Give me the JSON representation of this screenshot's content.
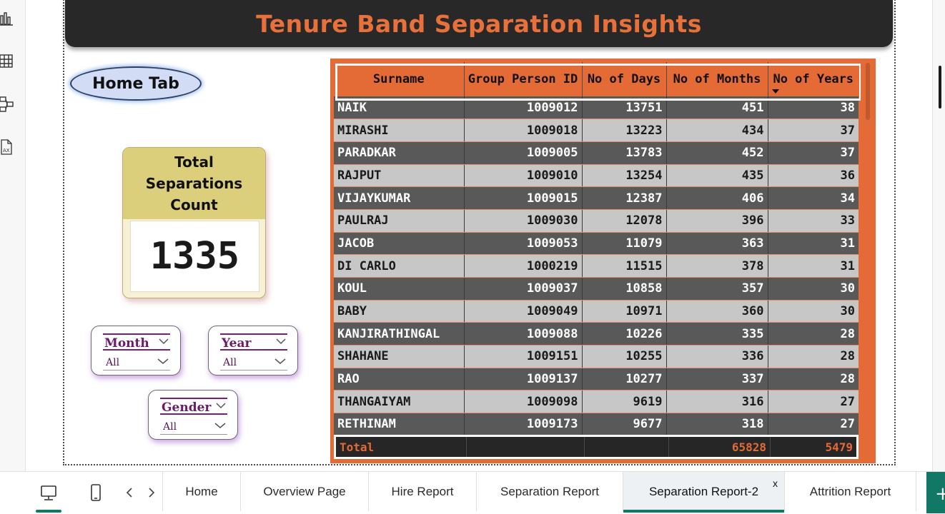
{
  "report": {
    "title": "Tenure Band Separation Insights",
    "home_button": "Home Tab"
  },
  "kpi": {
    "label": "Total Separations Count",
    "value": "1335"
  },
  "slicers": {
    "month": {
      "title": "Month",
      "value": "All"
    },
    "year": {
      "title": "Year",
      "value": "All"
    },
    "gender": {
      "title": "Gender",
      "value": "All"
    }
  },
  "table": {
    "columns": [
      "Surname",
      "Group Person ID",
      "No of Days",
      "No of Months",
      "No of Years"
    ],
    "sorted_column": "No of Years",
    "sort_direction": "descending",
    "rows": [
      [
        "NAIK",
        "1009012",
        "13751",
        "451",
        "38"
      ],
      [
        "MIRASHI",
        "1009018",
        "13223",
        "434",
        "37"
      ],
      [
        "PARADKAR",
        "1009005",
        "13783",
        "452",
        "37"
      ],
      [
        "RAJPUT",
        "1009010",
        "13254",
        "435",
        "36"
      ],
      [
        "VIJAYKUMAR",
        "1009015",
        "12387",
        "406",
        "34"
      ],
      [
        "PAULRAJ",
        "1009030",
        "12078",
        "396",
        "33"
      ],
      [
        "JACOB",
        "1009053",
        "11079",
        "363",
        "31"
      ],
      [
        "DI CARLO",
        "1000219",
        "11515",
        "378",
        "31"
      ],
      [
        "KOUL",
        "1009037",
        "10858",
        "357",
        "30"
      ],
      [
        "BABY",
        "1009049",
        "10971",
        "360",
        "30"
      ],
      [
        "KANJIRATHINGAL",
        "1009088",
        "10226",
        "335",
        "28"
      ],
      [
        "SHAHANE",
        "1009151",
        "10255",
        "336",
        "28"
      ],
      [
        "RAO",
        "1009137",
        "10277",
        "337",
        "28"
      ],
      [
        "THANGAIYAM",
        "1009098",
        "9619",
        "316",
        "27"
      ],
      [
        "RETHINAM",
        "1009173",
        "9677",
        "318",
        "27"
      ]
    ],
    "total": {
      "label": "Total",
      "no_of_months": "65828",
      "no_of_years": "5479"
    }
  },
  "views": [
    {
      "name": "desktop-view",
      "icon": "monitor-icon",
      "active": true
    },
    {
      "name": "mobile-view",
      "icon": "phone-icon",
      "active": false
    }
  ],
  "tabs": [
    {
      "label": "Home",
      "active": false
    },
    {
      "label": "Overview Page",
      "active": false
    },
    {
      "label": "Hire Report",
      "active": false
    },
    {
      "label": "Separation Report",
      "active": false
    },
    {
      "label": "Separation Report-2",
      "active": true
    },
    {
      "label": "Attrition Report",
      "active": false
    }
  ],
  "tab_close_glyph": "x",
  "left_rail_icons": [
    "report-view-icon",
    "table-view-icon",
    "model-view-icon",
    "dax-query-view-icon"
  ],
  "colors": {
    "accent_orange": "#e46a36",
    "banner_dark": "#282828",
    "row_dark": "#595959",
    "row_light": "#c7c7c7",
    "kpi_header": "#dccf7c",
    "slicer_text": "#6e1a6c",
    "tab_accent": "#117865"
  }
}
